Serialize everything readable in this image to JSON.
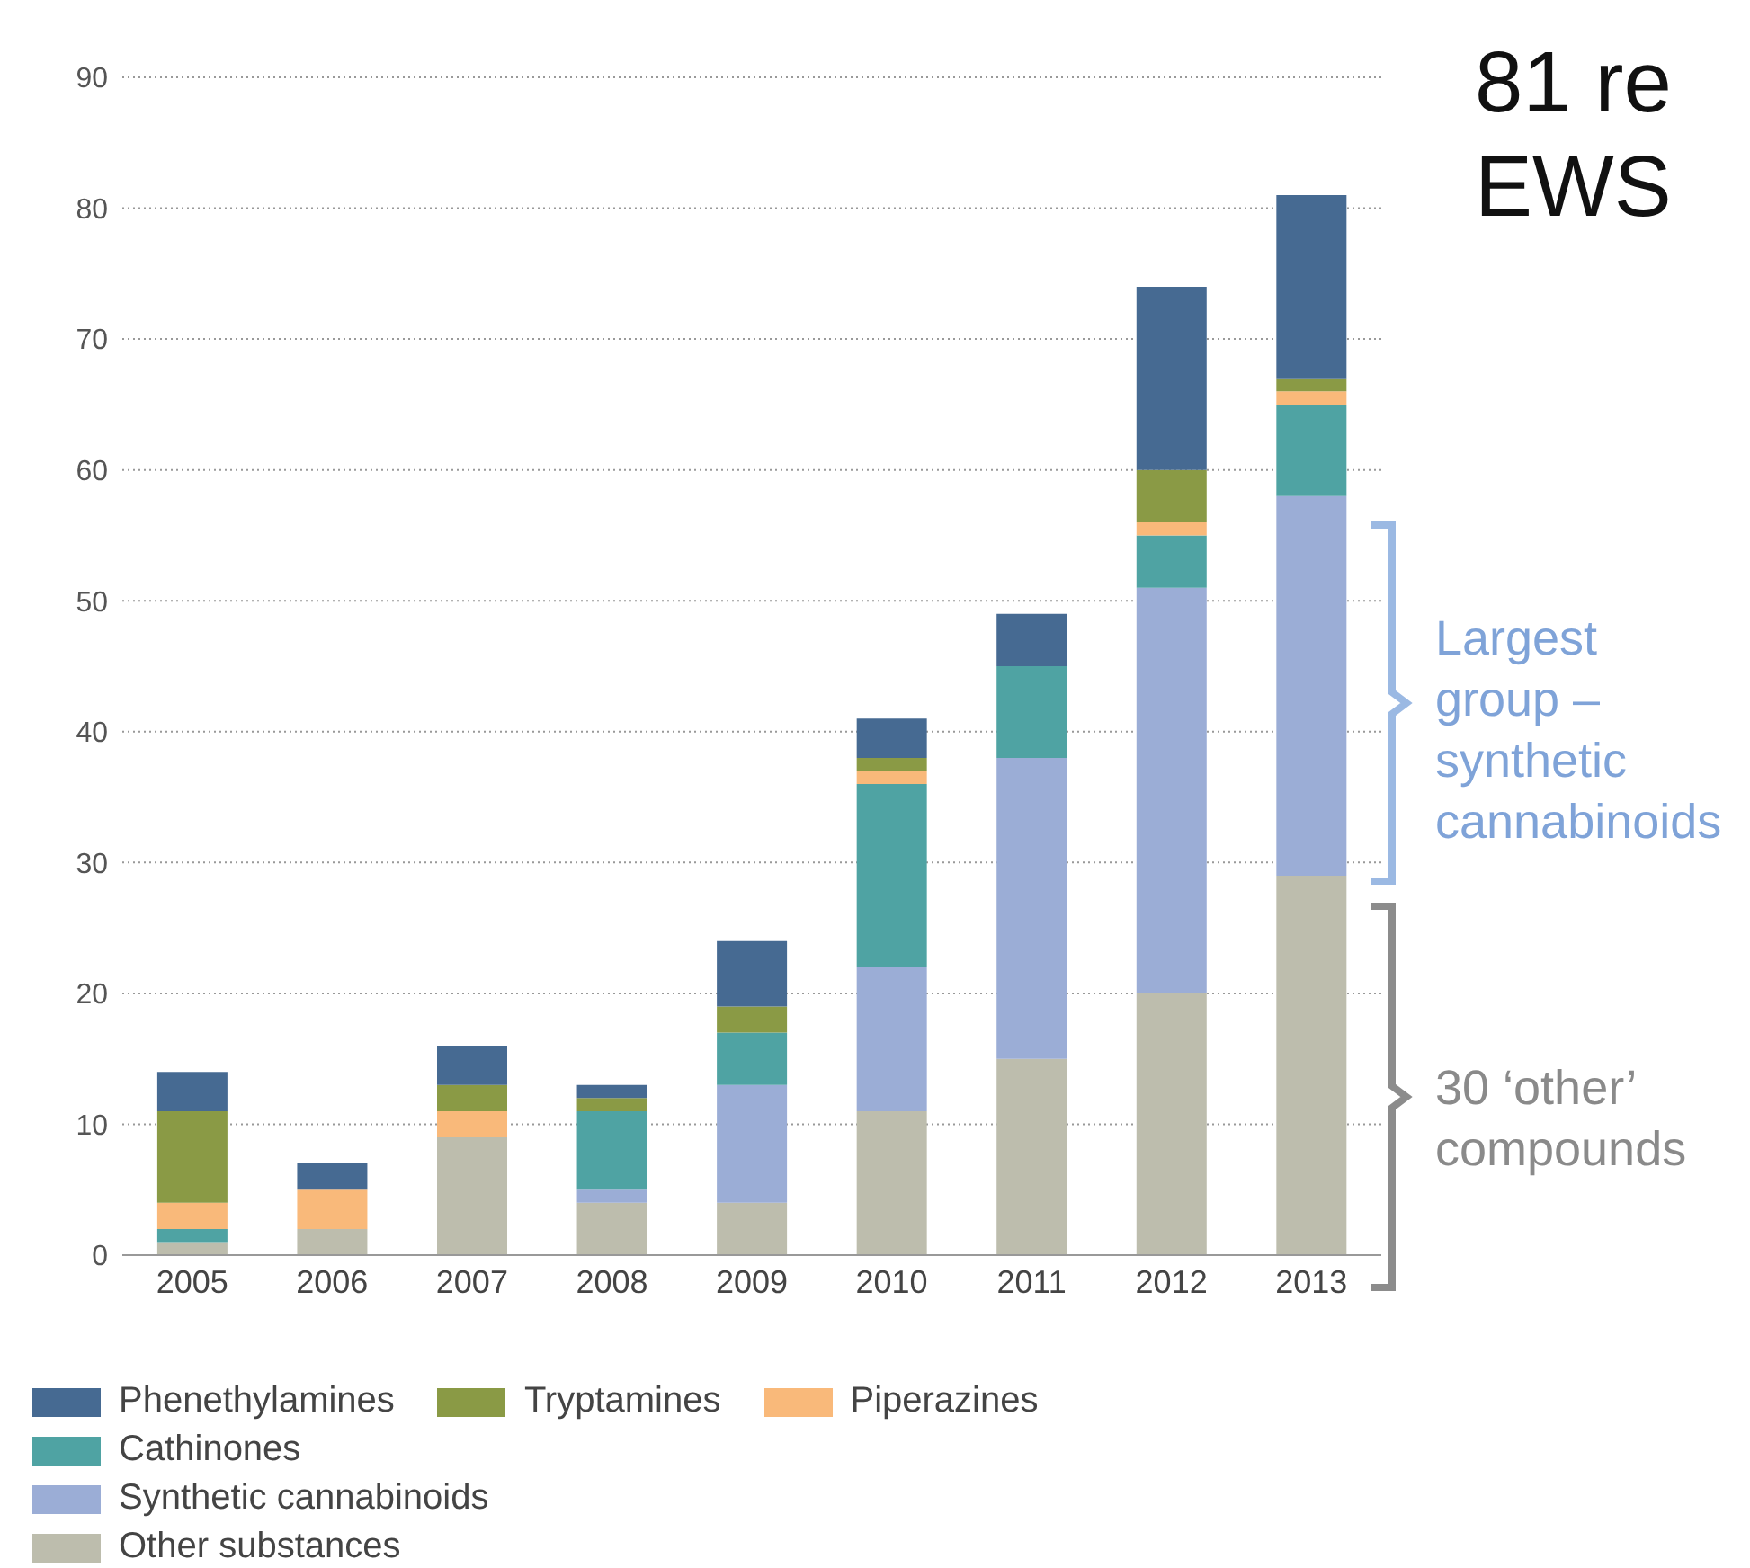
{
  "chart_data": {
    "type": "bar",
    "title": "81 re EWS",
    "stacked": true,
    "categories": [
      "2005",
      "2006",
      "2007",
      "2008",
      "2009",
      "2010",
      "2011",
      "2012",
      "2013"
    ],
    "series": [
      {
        "name": "Other substances",
        "color": "#bdbdad",
        "values": [
          1,
          2,
          9,
          4,
          4,
          11,
          15,
          20,
          29
        ]
      },
      {
        "name": "Synthetic cannabinoids",
        "color": "#9badd6",
        "values": [
          0,
          0,
          0,
          1,
          9,
          11,
          23,
          31,
          29
        ]
      },
      {
        "name": "Cathinones",
        "color": "#4fa3a3",
        "values": [
          1,
          0,
          0,
          6,
          4,
          14,
          7,
          4,
          7
        ]
      },
      {
        "name": "Piperazines",
        "color": "#f9b97a",
        "values": [
          2,
          3,
          2,
          0,
          0,
          1,
          0,
          1,
          1
        ]
      },
      {
        "name": "Tryptamines",
        "color": "#8a9a45",
        "values": [
          7,
          0,
          2,
          1,
          2,
          1,
          0,
          4,
          1
        ]
      },
      {
        "name": "Phenethylamines",
        "color": "#466a92",
        "values": [
          3,
          2,
          3,
          1,
          5,
          3,
          4,
          14,
          14
        ]
      }
    ],
    "ylim": [
      0,
      90
    ],
    "yticks": [
      0,
      10,
      20,
      30,
      40,
      50,
      60,
      70,
      80,
      90
    ],
    "grid": "y",
    "legend": "bottom",
    "annotations": [
      "Largest group – synthetic cannabinoids",
      "30 ‘other’ compounds"
    ]
  }
}
